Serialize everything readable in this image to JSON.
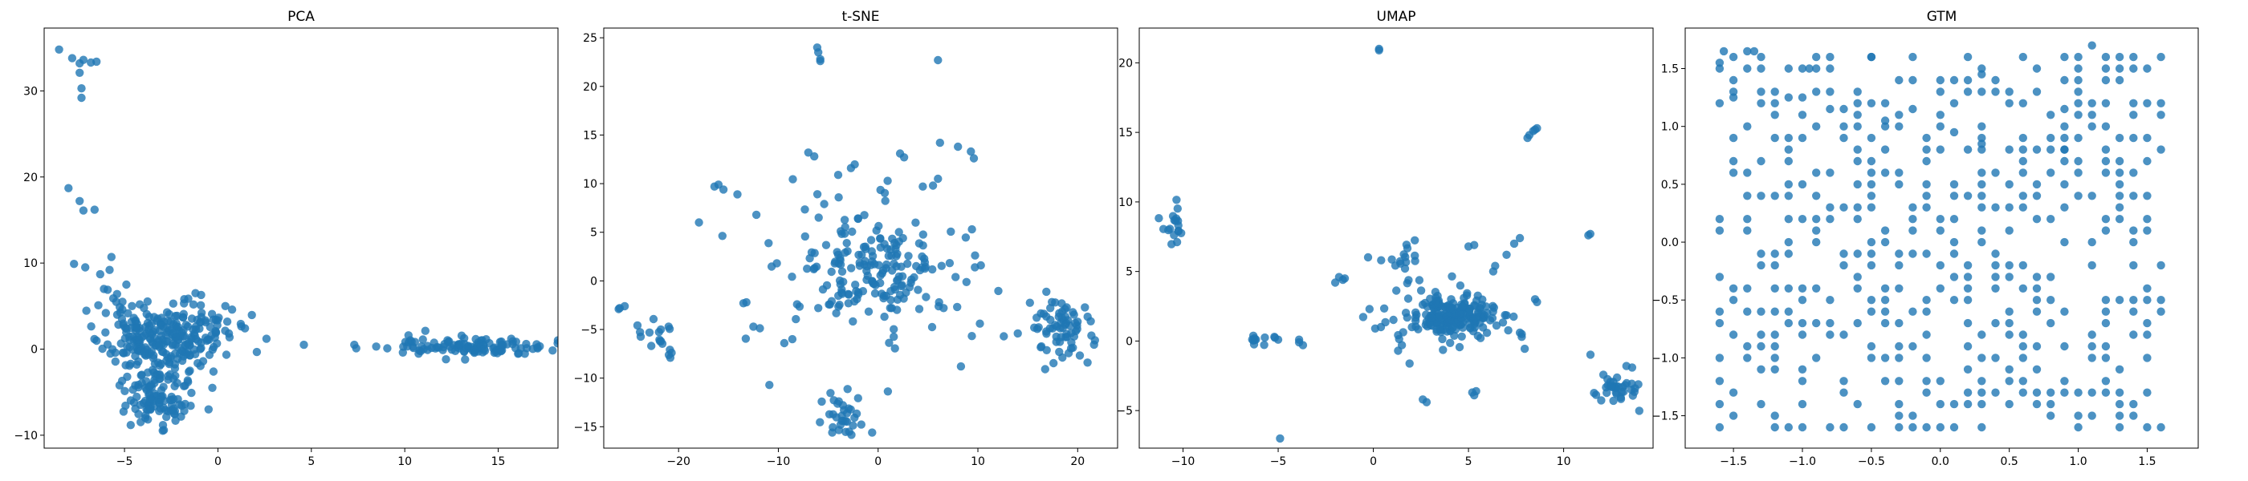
{
  "figure": {
    "point_color": "#1f77b4",
    "point_opacity": 0.8
  },
  "chart_data": [
    {
      "type": "scatter",
      "title": "PCA",
      "xlim": [
        -9.3,
        18.2
      ],
      "ylim": [
        -11.5,
        37.3
      ],
      "xticks": [
        -5,
        0,
        5,
        10,
        15
      ],
      "yticks": [
        -10,
        0,
        10,
        20,
        30
      ],
      "xticklabels": [
        "−5",
        "0",
        "5",
        "10",
        "15"
      ],
      "yticklabels": [
        "−10",
        "0",
        "10",
        "20",
        "30"
      ],
      "clusters": [
        {
          "center": [
            -3.3,
            1.2
          ],
          "spread": [
            1.4,
            1.9
          ],
          "count": 220,
          "seed": 11
        },
        {
          "center": [
            -3.3,
            -5.5
          ],
          "spread": [
            0.8,
            1.6
          ],
          "count": 110,
          "seed": 12
        },
        {
          "center": [
            -1.0,
            1.8
          ],
          "spread": [
            1.2,
            1.6
          ],
          "count": 40,
          "seed": 13
        },
        {
          "center": [
            13.6,
            0.3
          ],
          "spread": [
            2.1,
            0.55
          ],
          "count": 110,
          "seed": 14
        }
      ],
      "points": [
        [
          -8.5,
          34.8
        ],
        [
          -7.8,
          33.8
        ],
        [
          -7.4,
          33.2
        ],
        [
          -7.2,
          33.6
        ],
        [
          -6.8,
          33.3
        ],
        [
          -6.5,
          33.4
        ],
        [
          -7.4,
          32.1
        ],
        [
          -7.3,
          30.3
        ],
        [
          -7.3,
          29.2
        ],
        [
          -8.0,
          18.7
        ],
        [
          -7.4,
          17.2
        ],
        [
          -7.2,
          16.1
        ],
        [
          -6.6,
          16.2
        ],
        [
          -7.7,
          9.9
        ],
        [
          -7.1,
          9.5
        ],
        [
          -6.3,
          8.7
        ],
        [
          -5.7,
          10.7
        ],
        [
          -5.8,
          9.2
        ],
        [
          -6.1,
          7.0
        ],
        [
          -5.9,
          6.9
        ],
        [
          -5.4,
          6.4
        ],
        [
          -6.4,
          5.1
        ],
        [
          -4.9,
          7.5
        ],
        [
          -4.6,
          5.0
        ],
        [
          -6.0,
          4.2
        ],
        [
          -5.6,
          5.9
        ],
        [
          -0.3,
          -4.5
        ],
        [
          -0.5,
          -7.0
        ],
        [
          2.6,
          1.2
        ],
        [
          4.6,
          0.5
        ],
        [
          7.3,
          0.5
        ],
        [
          7.4,
          0.1
        ],
        [
          9.9,
          -0.4
        ],
        [
          10.2,
          1.6
        ],
        [
          10.9,
          0.3
        ],
        [
          -2.3,
          -7.2
        ],
        [
          -1.5,
          -2.5
        ],
        [
          -1.8,
          5.8
        ],
        [
          0.5,
          3.2
        ],
        [
          0.4,
          5.0
        ],
        [
          -0.9,
          6.3
        ],
        [
          -1.2,
          6.5
        ],
        [
          15.7,
          1.2
        ],
        [
          16.5,
          0.6
        ],
        [
          17.1,
          0.2
        ]
      ]
    },
    {
      "type": "scatter",
      "title": "t-SNE",
      "xlim": [
        -27.5,
        24.0
      ],
      "ylim": [
        -17.2,
        26.0
      ],
      "xticks": [
        -20,
        -10,
        0,
        10,
        20
      ],
      "yticks": [
        -15,
        -10,
        -5,
        0,
        5,
        10,
        15,
        20,
        25
      ],
      "xticklabels": [
        "−20",
        "−10",
        "0",
        "10",
        "20"
      ],
      "yticklabels": [
        "−15",
        "−10",
        "−5",
        "0",
        "5",
        "10",
        "15",
        "20",
        "25"
      ],
      "clusters": [
        {
          "center": [
            0.0,
            1.2
          ],
          "spread": [
            3.8,
            2.8
          ],
          "count": 130,
          "seed": 21
        },
        {
          "center": [
            -3.0,
            3.0
          ],
          "spread": [
            4.8,
            4.3
          ],
          "count": 70,
          "seed": 22
        },
        {
          "center": [
            18.2,
            -5.0
          ],
          "spread": [
            1.6,
            1.9
          ],
          "count": 70,
          "seed": 23
        },
        {
          "center": [
            -3.6,
            -13.8
          ],
          "spread": [
            1.1,
            1.3
          ],
          "count": 30,
          "seed": 24
        },
        {
          "center": [
            -22.5,
            -6.0
          ],
          "spread": [
            1.2,
            1.3
          ],
          "count": 16,
          "seed": 25
        }
      ],
      "points": [
        [
          -25.9,
          -2.8
        ],
        [
          -25.4,
          -2.6
        ],
        [
          -26.0,
          -2.9
        ],
        [
          -21.0,
          -4.7
        ],
        [
          -20.7,
          -7.4
        ],
        [
          -6.1,
          24.0
        ],
        [
          -6.0,
          23.5
        ],
        [
          -5.8,
          22.8
        ],
        [
          -5.8,
          22.6
        ],
        [
          6.0,
          22.7
        ],
        [
          -16.4,
          9.7
        ],
        [
          -16.0,
          9.9
        ],
        [
          -15.5,
          9.4
        ],
        [
          -14.1,
          8.9
        ],
        [
          -12.2,
          6.8
        ],
        [
          -13.5,
          -2.3
        ],
        [
          -13.2,
          -2.2
        ],
        [
          -10.9,
          -10.7
        ],
        [
          -12.5,
          -4.7
        ],
        [
          6.2,
          14.2
        ],
        [
          8.0,
          13.8
        ],
        [
          9.3,
          13.3
        ],
        [
          9.6,
          12.6
        ],
        [
          2.2,
          13.1
        ],
        [
          2.6,
          12.7
        ],
        [
          -7.0,
          13.2
        ],
        [
          -6.4,
          12.8
        ],
        [
          9.4,
          5.3
        ],
        [
          10.3,
          1.6
        ],
        [
          9.7,
          1.4
        ],
        [
          10.2,
          -4.4
        ],
        [
          12.6,
          -5.7
        ],
        [
          14.0,
          -5.4
        ],
        [
          8.3,
          -8.8
        ],
        [
          -6.0,
          -2.8
        ],
        [
          -5.4,
          7.9
        ],
        [
          -4.0,
          10.9
        ],
        [
          5.5,
          9.8
        ],
        [
          6.0,
          10.5
        ],
        [
          -8.6,
          -6.0
        ],
        [
          -9.4,
          -6.4
        ],
        [
          -0.6,
          -15.6
        ],
        [
          -2.9,
          -15.5
        ],
        [
          -4.6,
          -15.6
        ]
      ]
    },
    {
      "type": "scatter",
      "title": "UMAP",
      "xlim": [
        -12.3,
        14.7
      ],
      "ylim": [
        -7.7,
        22.5
      ],
      "xticks": [
        -10,
        -5,
        0,
        5,
        10
      ],
      "yticks": [
        -5,
        0,
        5,
        10,
        15,
        20
      ],
      "xticklabels": [
        "−10",
        "−5",
        "0",
        "5",
        "10"
      ],
      "yticklabels": [
        "−5",
        "0",
        "5",
        "10",
        "15",
        "20"
      ],
      "clusters": [
        {
          "center": [
            4.2,
            1.8
          ],
          "spread": [
            1.1,
            0.7
          ],
          "count": 180,
          "seed": 31
        },
        {
          "center": [
            4.0,
            1.8
          ],
          "spread": [
            2.0,
            1.2
          ],
          "count": 40,
          "seed": 32
        },
        {
          "center": [
            -10.5,
            8.2
          ],
          "spread": [
            0.35,
            0.8
          ],
          "count": 18,
          "seed": 33
        },
        {
          "center": [
            12.7,
            -3.3
          ],
          "spread": [
            0.7,
            0.6
          ],
          "count": 35,
          "seed": 34
        },
        {
          "center": [
            1.6,
            5.6
          ],
          "spread": [
            0.6,
            0.7
          ],
          "count": 18,
          "seed": 35
        },
        {
          "center": [
            -6.4,
            -0.1
          ],
          "spread": [
            0.6,
            0.2
          ],
          "count": 10,
          "seed": 36
        }
      ],
      "points": [
        [
          0.3,
          21.0
        ],
        [
          0.3,
          20.9
        ],
        [
          8.4,
          15.1
        ],
        [
          8.5,
          15.2
        ],
        [
          8.2,
          14.8
        ],
        [
          8.1,
          14.6
        ],
        [
          8.6,
          15.3
        ],
        [
          -1.8,
          4.6
        ],
        [
          -1.6,
          4.4
        ],
        [
          -2.0,
          4.2
        ],
        [
          -1.5,
          4.5
        ],
        [
          -3.9,
          -0.1
        ],
        [
          -3.7,
          -0.3
        ],
        [
          -3.9,
          0.1
        ],
        [
          -5.2,
          0.3
        ],
        [
          -5.0,
          0.1
        ],
        [
          -4.9,
          -7.0
        ],
        [
          -0.2,
          2.3
        ],
        [
          0.1,
          0.9
        ],
        [
          0.4,
          1.0
        ],
        [
          1.3,
          -0.7
        ],
        [
          1.5,
          -0.3
        ],
        [
          2.8,
          -4.4
        ],
        [
          2.6,
          -4.2
        ],
        [
          5.2,
          -3.7
        ],
        [
          5.4,
          -3.6
        ],
        [
          5.3,
          -3.9
        ],
        [
          11.4,
          7.7
        ],
        [
          11.3,
          7.6
        ],
        [
          7.8,
          0.5
        ],
        [
          7.8,
          0.3
        ],
        [
          7.7,
          0.6
        ],
        [
          6.3,
          5.0
        ],
        [
          6.4,
          5.4
        ],
        [
          7.0,
          6.2
        ],
        [
          7.4,
          7.0
        ],
        [
          7.7,
          7.4
        ],
        [
          5.0,
          6.8
        ],
        [
          5.3,
          6.9
        ],
        [
          8.5,
          3.0
        ],
        [
          8.6,
          2.8
        ],
        [
          13.3,
          -1.8
        ],
        [
          13.6,
          -1.9
        ]
      ]
    },
    {
      "type": "scatter",
      "title": "GTM",
      "xlim": [
        -1.85,
        1.87
      ],
      "ylim": [
        -1.78,
        1.85
      ],
      "xticks": [
        -1.5,
        -1.0,
        -0.5,
        0.0,
        0.5,
        1.0,
        1.5
      ],
      "yticks": [
        -1.5,
        -1.0,
        -0.5,
        0.0,
        0.5,
        1.0,
        1.5
      ],
      "xticklabels": [
        "−1.5",
        "−1.0",
        "−0.5",
        "0.0",
        "0.5",
        "1.0",
        "1.5"
      ],
      "yticklabels": [
        "−1.5",
        "−1.0",
        "−0.5",
        "0.0",
        "0.5",
        "1.0",
        "1.5"
      ],
      "lattice": {
        "from": -1.6,
        "to": 1.6,
        "step": 0.1
      },
      "mask_seed": 41,
      "mask_threshold": 0.62,
      "points": [
        [
          -1.6,
          1.55
        ],
        [
          -1.57,
          1.65
        ],
        [
          -1.5,
          1.25
        ],
        [
          -1.4,
          1.65
        ],
        [
          -1.35,
          1.65
        ],
        [
          -1.1,
          1.25
        ],
        [
          -1.0,
          1.25
        ],
        [
          -0.95,
          1.5
        ],
        [
          -0.8,
          1.15
        ],
        [
          -0.7,
          1.15
        ],
        [
          -0.5,
          1.6
        ],
        [
          -0.4,
          1.05
        ],
        [
          -0.2,
          1.15
        ],
        [
          0.0,
          1.4
        ],
        [
          0.0,
          1.1
        ],
        [
          0.2,
          1.4
        ],
        [
          0.3,
          1.45
        ],
        [
          0.6,
          1.2
        ],
        [
          0.9,
          1.15
        ],
        [
          1.2,
          1.6
        ],
        [
          1.1,
          1.7
        ],
        [
          1.3,
          1.6
        ],
        [
          1.2,
          1.2
        ],
        [
          0.9,
          1.0
        ],
        [
          0.9,
          0.8
        ],
        [
          0.3,
          0.85
        ],
        [
          0.1,
          0.95
        ]
      ]
    }
  ]
}
